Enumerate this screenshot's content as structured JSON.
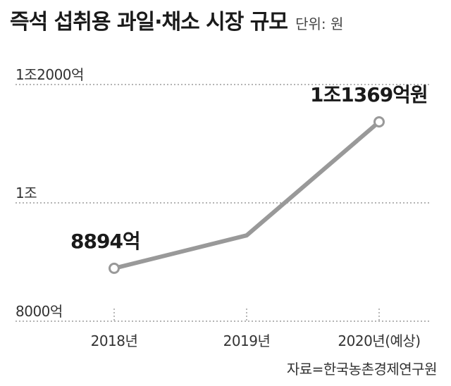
{
  "chart_data": {
    "type": "line",
    "title": "즉석 섭취용 과일·채소 시장 규모",
    "unit_label": "단위: 원",
    "categories": [
      "2018년",
      "2019년",
      "2020년(예상)"
    ],
    "series": [
      {
        "values": [
          8894,
          9450,
          11369
        ]
      }
    ],
    "y_ticks": [
      {
        "value": 8000,
        "label": "8000억"
      },
      {
        "value": 10000,
        "label": "1조"
      },
      {
        "value": 12000,
        "label": "1조2000억"
      }
    ],
    "data_labels": [
      "8894억",
      "",
      "1조1369억원"
    ],
    "ylim": [
      8000,
      12000
    ],
    "grid": true,
    "line_color": "#999999",
    "grid_color": "#888888",
    "source": "자료=한국농촌경제연구원"
  }
}
